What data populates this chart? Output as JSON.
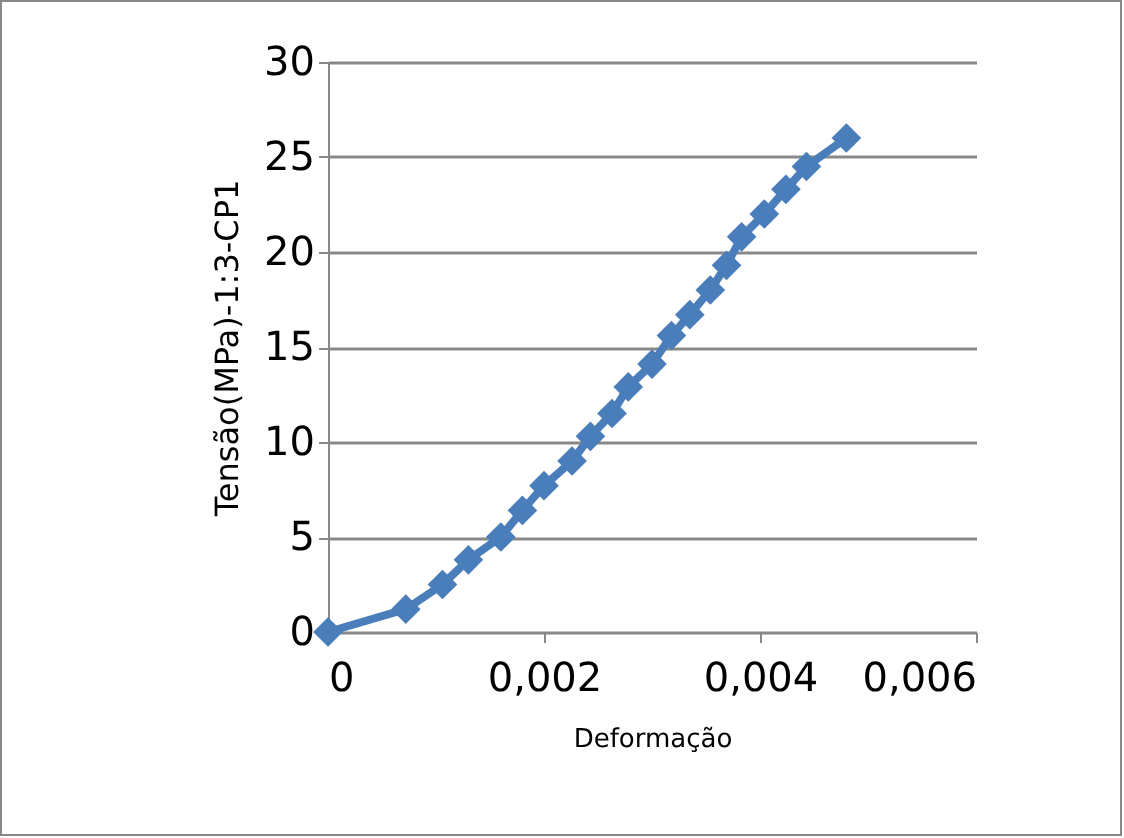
{
  "chart_data": {
    "type": "line",
    "xlabel": "Deformação",
    "ylabel": "Tensão(MPa)-1:3-CP1",
    "x": [
      0,
      0.00072,
      0.00106,
      0.0013,
      0.0016,
      0.0018,
      0.002,
      0.00226,
      0.00243,
      0.00263,
      0.00278,
      0.003,
      0.00318,
      0.00335,
      0.00354,
      0.00369,
      0.00383,
      0.00404,
      0.00424,
      0.00443,
      0.0048
    ],
    "series": [
      {
        "color": "#4a7ebb",
        "values": [
          0,
          1.2,
          2.5,
          3.8,
          5.0,
          6.4,
          7.7,
          9.0,
          10.3,
          11.5,
          12.9,
          14.1,
          15.6,
          16.7,
          18.0,
          19.3,
          20.8,
          22.0,
          23.3,
          24.5,
          26.0
        ]
      }
    ],
    "xlim": [
      0,
      0.006
    ],
    "xticks": [
      {
        "value": 0,
        "label": "0"
      },
      {
        "value": 0.002,
        "label": "0,002"
      },
      {
        "value": 0.004,
        "label": "0,004"
      },
      {
        "value": 0.006,
        "label": "0,006"
      }
    ],
    "ylim": [
      0,
      30
    ],
    "yticks": [
      0,
      5,
      10,
      15,
      20,
      25,
      30
    ],
    "grid": "y",
    "marker": "diamond",
    "line_style": "solid",
    "legend": false
  }
}
